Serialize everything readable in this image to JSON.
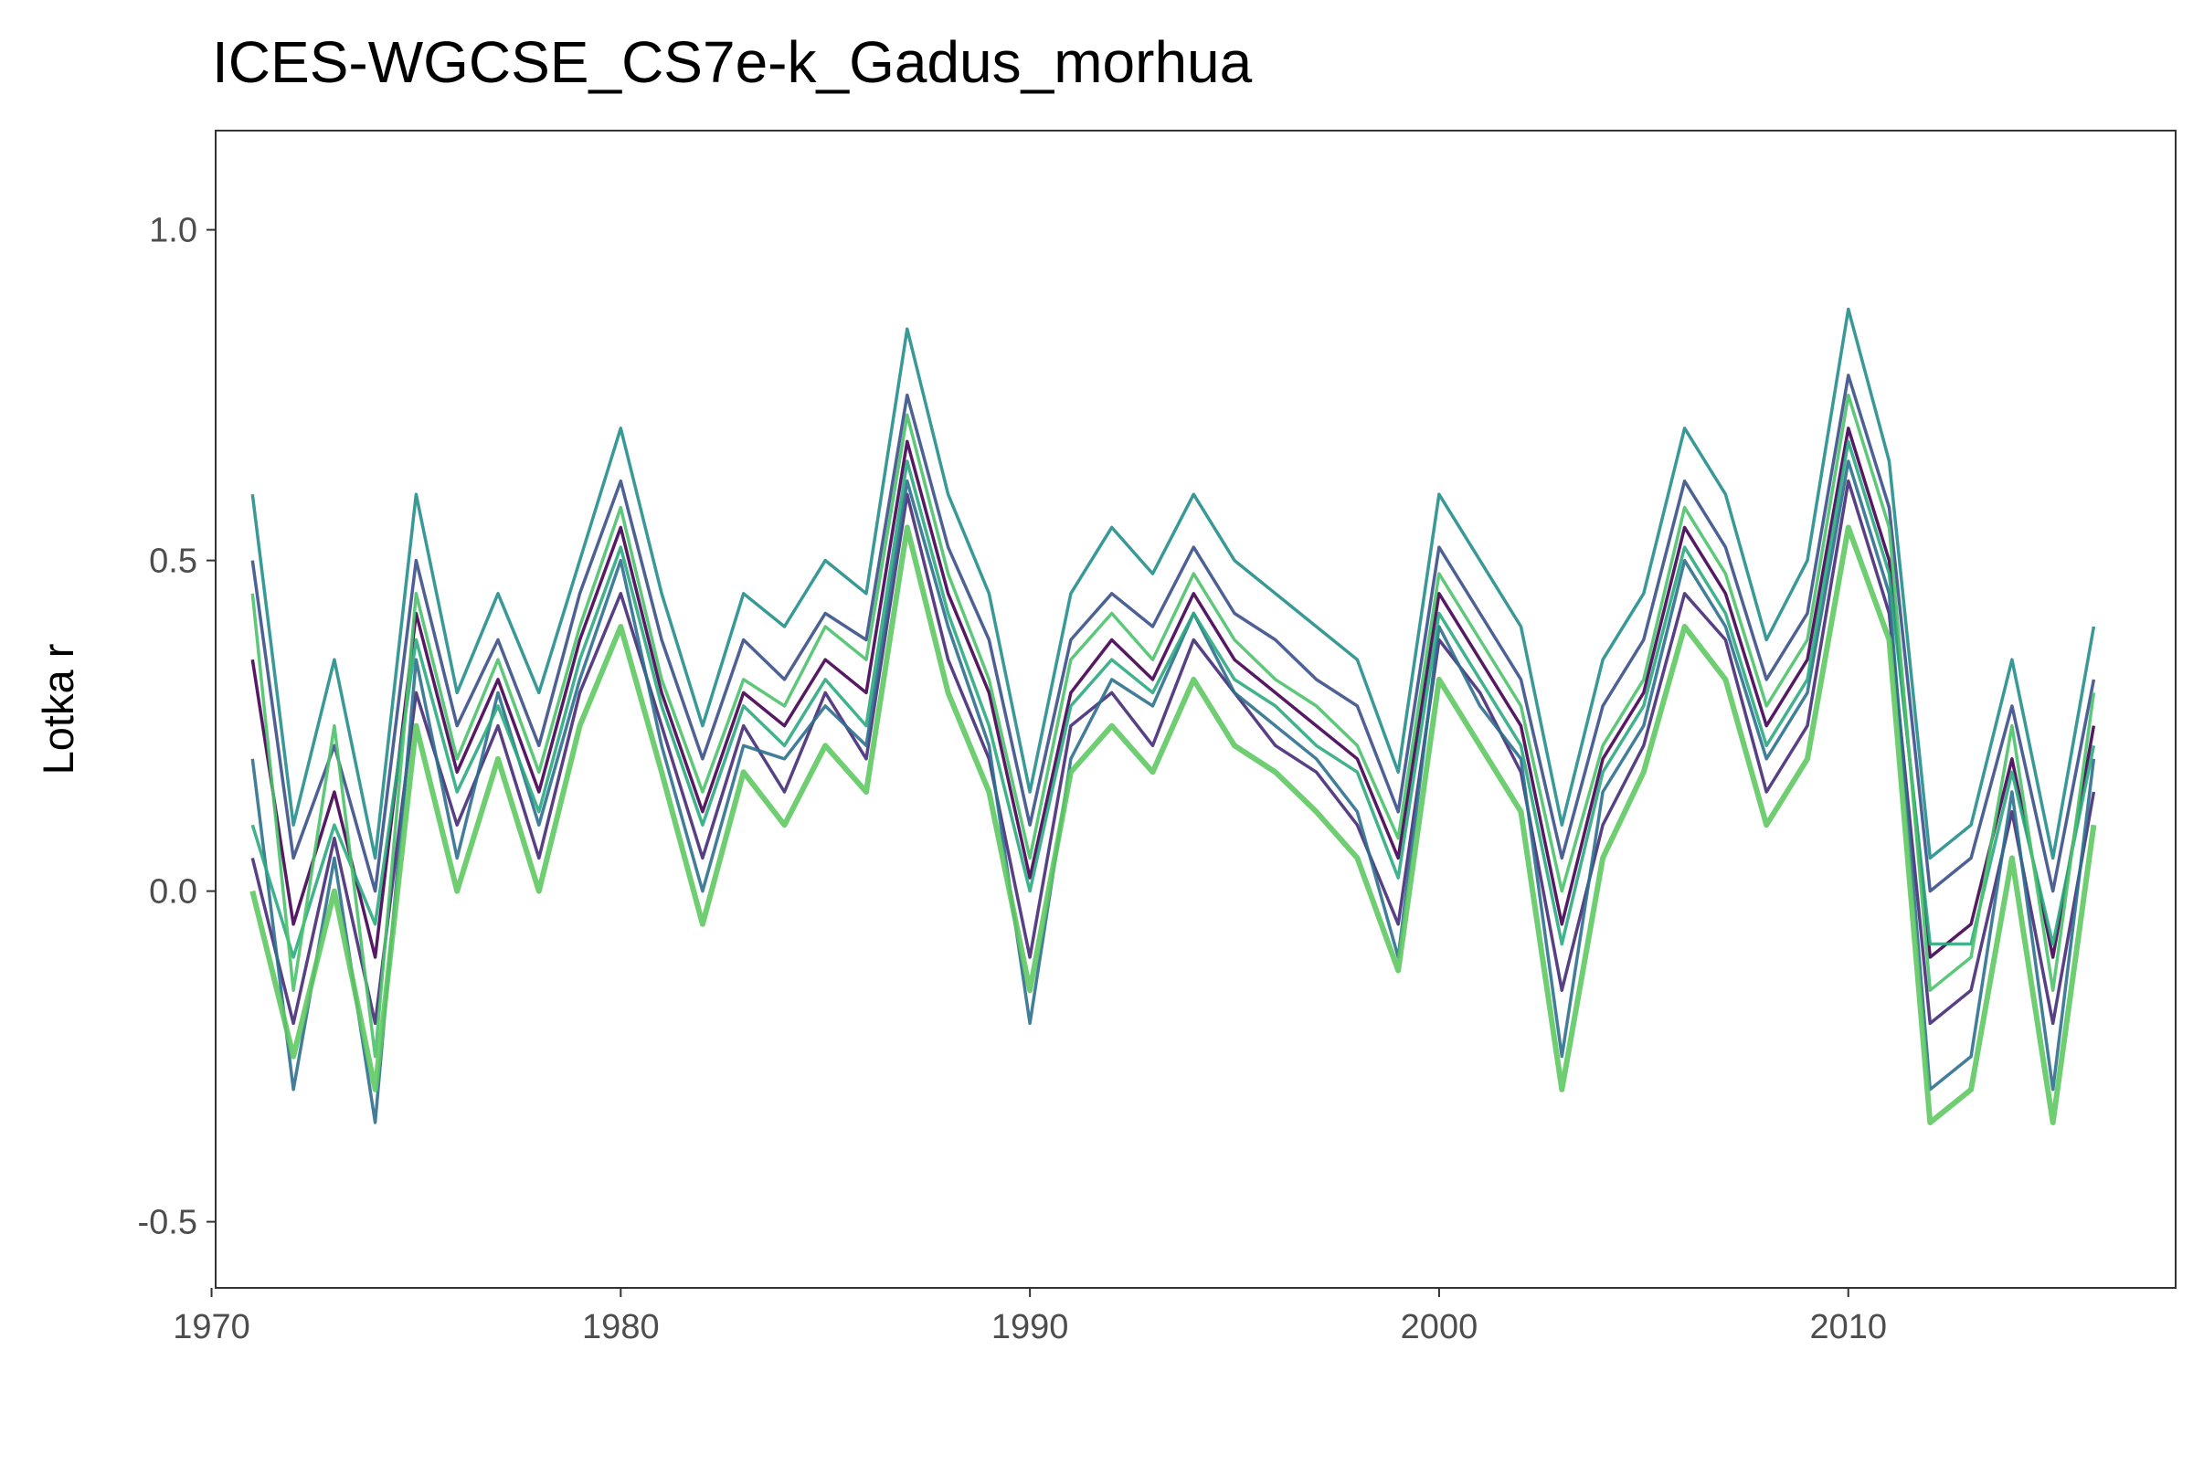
{
  "chart_data": {
    "type": "line",
    "title": "ICES-WGCSE_CS7e-k_Gadus_morhua",
    "xlabel": "",
    "ylabel": "Lotka r",
    "xlim": [
      1970.1,
      2018.0
    ],
    "ylim": [
      -0.6,
      1.15
    ],
    "x_ticks": [
      1970,
      1980,
      1990,
      2000,
      2010
    ],
    "x_tick_labels": [
      "1970",
      "1980",
      "1990",
      "2000",
      "2010"
    ],
    "y_ticks": [
      -0.5,
      0.0,
      0.5,
      1.0
    ],
    "y_tick_labels": [
      "-0.5",
      "0.0",
      "0.5",
      "1.0"
    ],
    "grid": false,
    "legend": "none",
    "color_scale": "viridis (dark purple to green), one color per simulated trajectory",
    "colors": {
      "panel_border": "#333333",
      "axis_text": "#4d4d4d",
      "scale_start": "#440154",
      "scale_end": "#5ec962"
    },
    "x": [
      1971,
      1972,
      1973,
      1974,
      1975,
      1976,
      1977,
      1978,
      1979,
      1980,
      1981,
      1982,
      1983,
      1984,
      1985,
      1986,
      1987,
      1988,
      1989,
      1990,
      1991,
      1992,
      1993,
      1994,
      1995,
      1996,
      1997,
      1998,
      1999,
      2000,
      2001,
      2002,
      2003,
      2004,
      2005,
      2006,
      2007,
      2008,
      2009,
      2010,
      2011,
      2012,
      2013,
      2014,
      2015,
      2016
    ],
    "series": [
      {
        "values": [
          0.35,
          -0.05,
          0.15,
          -0.1,
          0.42,
          0.18,
          0.32,
          0.15,
          0.38,
          0.55,
          0.3,
          0.12,
          0.3,
          0.25,
          0.35,
          0.3,
          0.68,
          0.45,
          0.3,
          0.02,
          0.3,
          0.38,
          0.32,
          0.45,
          0.35,
          0.3,
          0.25,
          0.2,
          0.05,
          0.45,
          0.35,
          0.25,
          -0.05,
          0.2,
          0.3,
          0.55,
          0.45,
          0.25,
          0.35,
          0.7,
          0.5,
          -0.1,
          -0.05,
          0.2,
          -0.1,
          0.25
        ]
      },
      {
        "values": [
          0.05,
          -0.2,
          0.08,
          -0.2,
          0.3,
          0.1,
          0.25,
          0.05,
          0.3,
          0.45,
          0.25,
          0.05,
          0.25,
          0.15,
          0.3,
          0.2,
          0.6,
          0.35,
          0.2,
          -0.1,
          0.25,
          0.3,
          0.22,
          0.38,
          0.3,
          0.22,
          0.18,
          0.1,
          -0.05,
          0.38,
          0.3,
          0.18,
          -0.15,
          0.1,
          0.22,
          0.45,
          0.38,
          0.15,
          0.25,
          0.62,
          0.42,
          -0.2,
          -0.15,
          0.12,
          -0.2,
          0.15
        ]
      },
      {
        "values": [
          0.5,
          0.05,
          0.22,
          0.0,
          0.5,
          0.25,
          0.38,
          0.22,
          0.45,
          0.62,
          0.38,
          0.2,
          0.38,
          0.32,
          0.42,
          0.38,
          0.75,
          0.52,
          0.38,
          0.1,
          0.38,
          0.45,
          0.4,
          0.52,
          0.42,
          0.38,
          0.32,
          0.28,
          0.12,
          0.52,
          0.42,
          0.32,
          0.05,
          0.28,
          0.38,
          0.62,
          0.52,
          0.32,
          0.42,
          0.78,
          0.58,
          0.0,
          0.05,
          0.28,
          0.0,
          0.32
        ]
      },
      {
        "values": [
          0.2,
          -0.3,
          0.05,
          -0.35,
          0.35,
          0.05,
          0.3,
          0.1,
          0.32,
          0.5,
          0.22,
          0.0,
          0.22,
          0.2,
          0.28,
          0.22,
          0.62,
          0.4,
          0.22,
          -0.2,
          0.2,
          0.32,
          0.28,
          0.42,
          0.3,
          0.25,
          0.2,
          0.12,
          -0.1,
          0.4,
          0.28,
          0.2,
          -0.25,
          0.15,
          0.25,
          0.5,
          0.4,
          0.2,
          0.3,
          0.65,
          0.45,
          -0.3,
          -0.25,
          0.15,
          -0.3,
          0.2
        ]
      },
      {
        "values": [
          0.6,
          0.1,
          0.35,
          0.05,
          0.6,
          0.3,
          0.45,
          0.3,
          0.5,
          0.7,
          0.45,
          0.25,
          0.45,
          0.4,
          0.5,
          0.45,
          0.85,
          0.6,
          0.45,
          0.15,
          0.45,
          0.55,
          0.48,
          0.6,
          0.5,
          0.45,
          0.4,
          0.35,
          0.18,
          0.6,
          0.5,
          0.4,
          0.1,
          0.35,
          0.45,
          0.7,
          0.6,
          0.38,
          0.5,
          0.88,
          0.65,
          0.05,
          0.1,
          0.35,
          0.05,
          0.4
        ]
      },
      {
        "values": [
          0.1,
          -0.1,
          0.1,
          -0.05,
          0.38,
          0.15,
          0.28,
          0.12,
          0.35,
          0.52,
          0.28,
          0.1,
          0.28,
          0.22,
          0.32,
          0.25,
          0.65,
          0.42,
          0.25,
          0.0,
          0.28,
          0.35,
          0.3,
          0.42,
          0.32,
          0.28,
          0.22,
          0.18,
          0.02,
          0.42,
          0.32,
          0.22,
          -0.08,
          0.18,
          0.28,
          0.52,
          0.42,
          0.22,
          0.32,
          0.68,
          0.48,
          -0.08,
          -0.08,
          0.18,
          -0.08,
          0.22
        ]
      },
      {
        "values": [
          0.45,
          -0.15,
          0.25,
          -0.25,
          0.45,
          0.2,
          0.35,
          0.18,
          0.4,
          0.58,
          0.32,
          0.15,
          0.32,
          0.28,
          0.4,
          0.35,
          0.72,
          0.48,
          0.32,
          0.05,
          0.35,
          0.42,
          0.35,
          0.48,
          0.38,
          0.32,
          0.28,
          0.22,
          0.08,
          0.48,
          0.38,
          0.28,
          0.0,
          0.22,
          0.32,
          0.58,
          0.48,
          0.28,
          0.38,
          0.75,
          0.55,
          -0.15,
          -0.1,
          0.25,
          -0.15,
          0.3
        ]
      },
      {
        "values": [
          0.0,
          -0.25,
          0.0,
          -0.3,
          0.25,
          0.0,
          0.2,
          0.0,
          0.25,
          0.4,
          0.18,
          -0.05,
          0.18,
          0.1,
          0.22,
          0.15,
          0.55,
          0.3,
          0.15,
          -0.15,
          0.18,
          0.25,
          0.18,
          0.32,
          0.22,
          0.18,
          0.12,
          0.05,
          -0.12,
          0.32,
          0.22,
          0.12,
          -0.3,
          0.05,
          0.18,
          0.4,
          0.32,
          0.1,
          0.2,
          0.55,
          0.38,
          -0.35,
          -0.3,
          0.05,
          -0.35,
          0.1
        ]
      }
    ]
  }
}
